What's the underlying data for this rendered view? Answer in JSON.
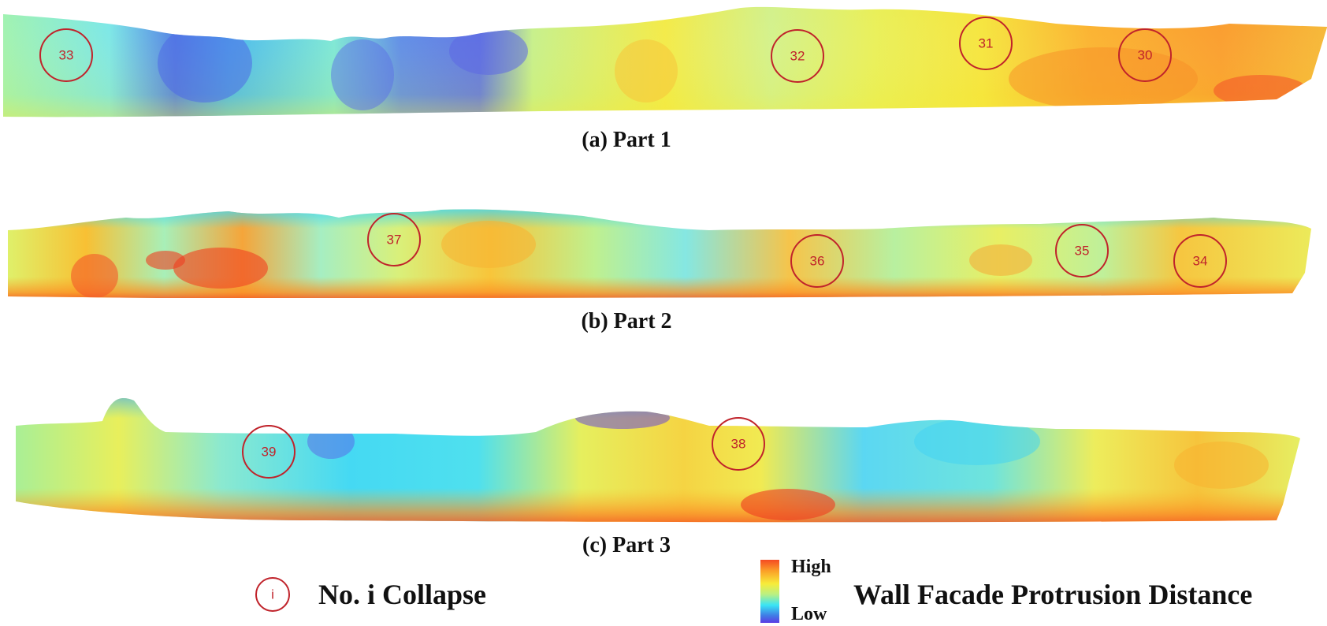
{
  "panels": [
    {
      "caption": "(a) Part 1",
      "markers": [
        "33",
        "32",
        "31",
        "30"
      ]
    },
    {
      "caption": "(b) Part 2",
      "markers": [
        "37",
        "36",
        "35",
        "34"
      ]
    },
    {
      "caption": "(c) Part 3",
      "markers": [
        "39",
        "38"
      ]
    }
  ],
  "legend": {
    "marker_symbol": "i",
    "marker_text": "No. i  Collapse",
    "scale_high": "High",
    "scale_low": "Low",
    "scale_title": "Wall Facade Protrusion Distance"
  },
  "colors": {
    "marker": "#c0232b",
    "scale": [
      "#f54a22",
      "#fba128",
      "#f7ec3a",
      "#b9f083",
      "#39e4f5",
      "#3f7ee6",
      "#5b3ce4"
    ]
  }
}
